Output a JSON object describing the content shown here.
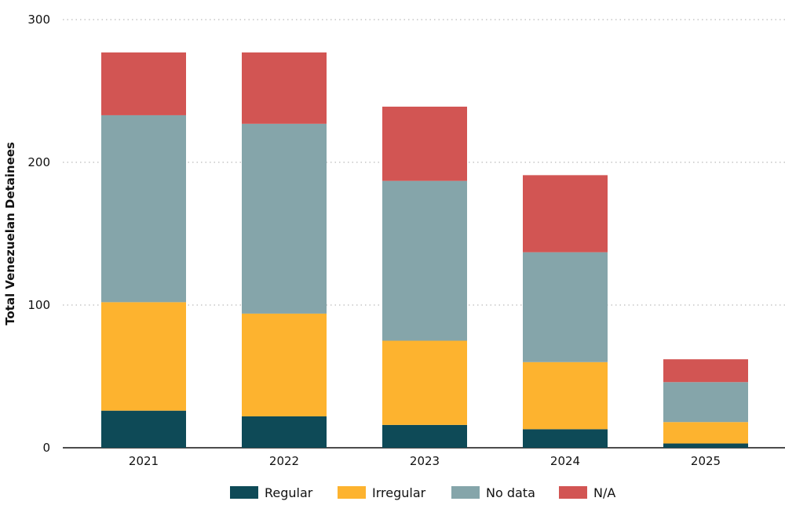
{
  "chart_data": {
    "type": "bar",
    "stacked": true,
    "title": "",
    "xlabel": "",
    "ylabel": "Total Venezuelan Detainees",
    "ylim": [
      0,
      300
    ],
    "yticks": [
      0,
      100,
      200,
      300
    ],
    "grid": "horizontal dotted",
    "legend_position": "bottom",
    "categories": [
      "2021",
      "2022",
      "2023",
      "2024",
      "2025"
    ],
    "series": [
      {
        "name": "Regular",
        "color": "#0e4a57",
        "values": [
          26,
          22,
          16,
          13,
          3
        ]
      },
      {
        "name": "Irregular",
        "color": "#fdb32f",
        "values": [
          76,
          72,
          59,
          47,
          15
        ]
      },
      {
        "name": "No data",
        "color": "#85a5aa",
        "values": [
          131,
          133,
          112,
          77,
          28
        ]
      },
      {
        "name": "N/A",
        "color": "#d25553",
        "values": [
          44,
          50,
          52,
          54,
          16
        ]
      }
    ]
  }
}
